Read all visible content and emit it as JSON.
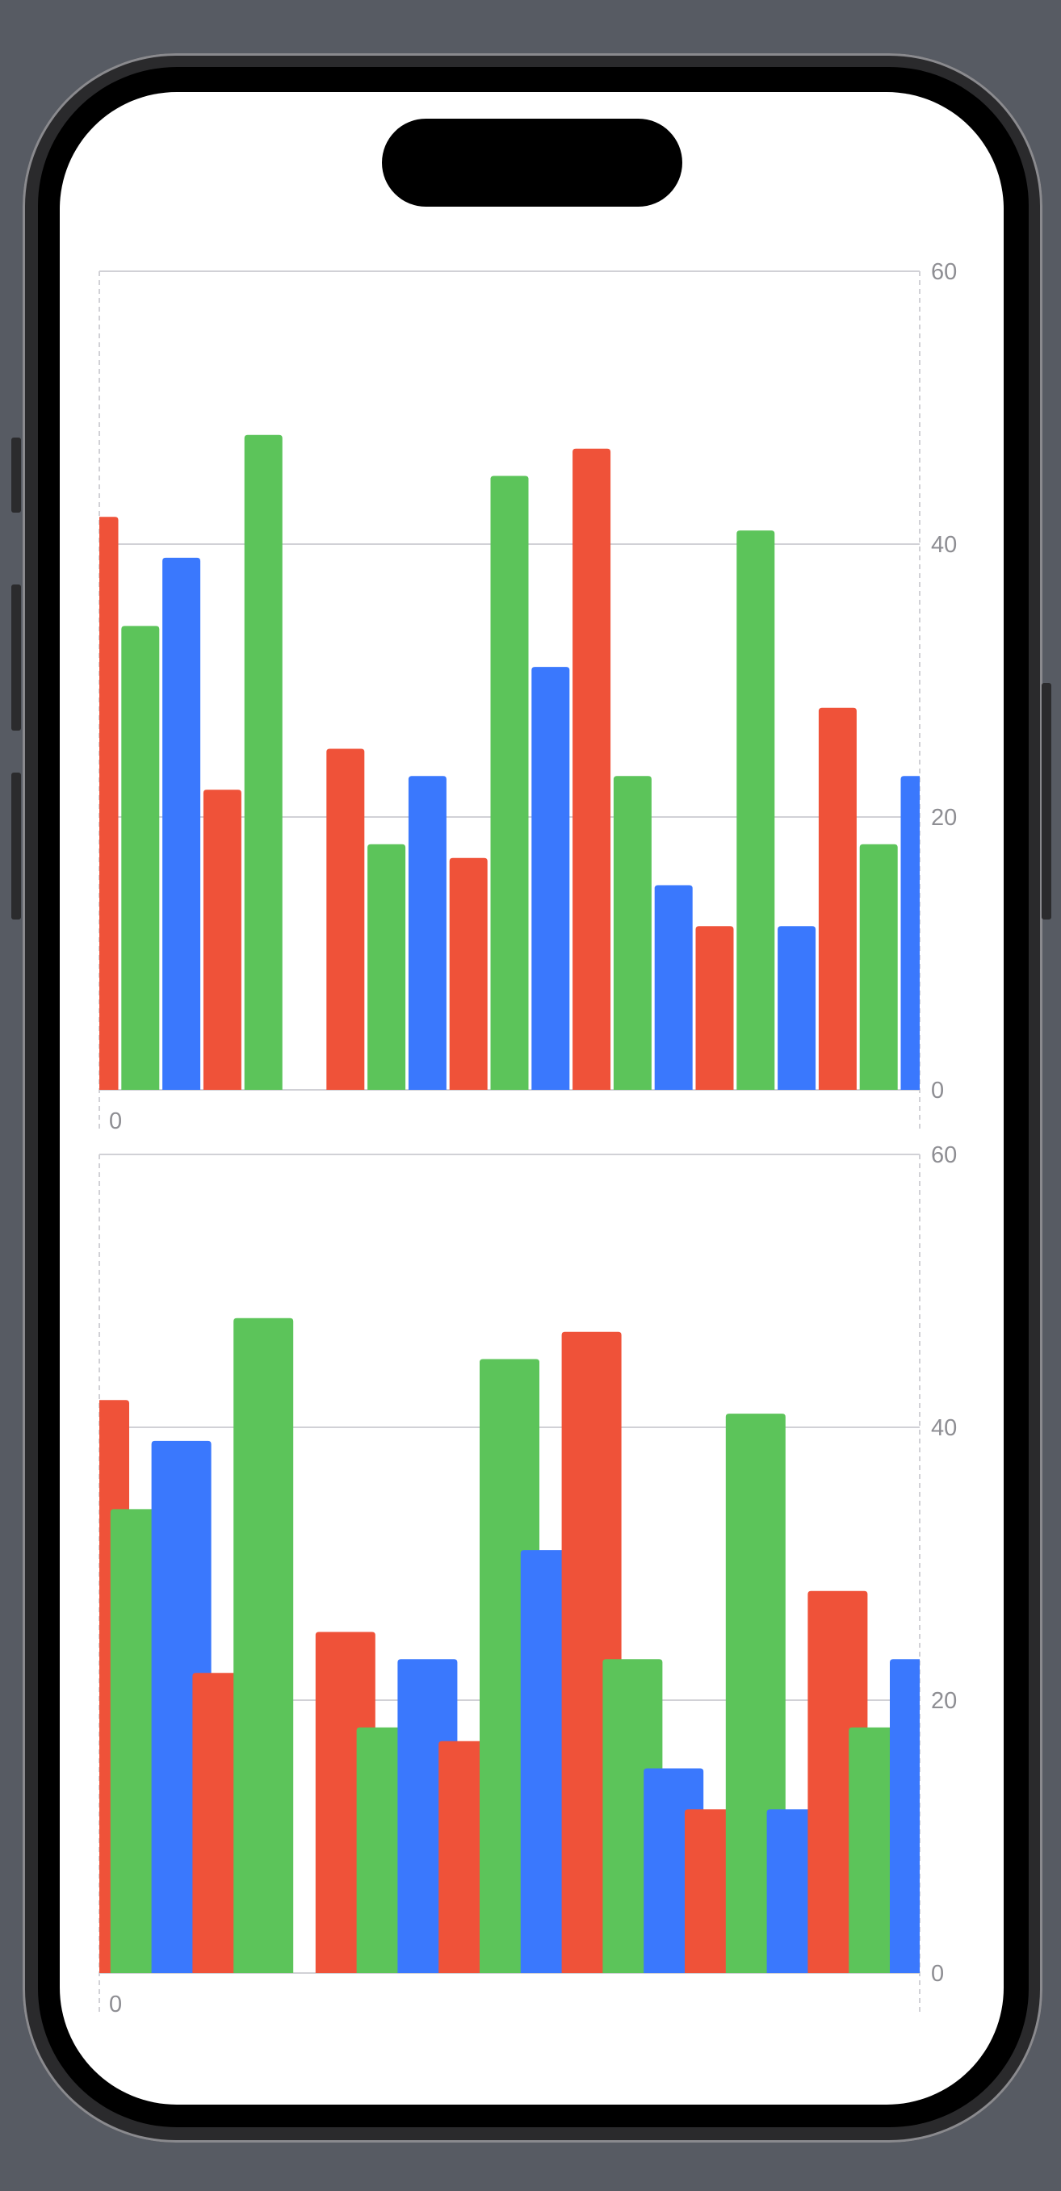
{
  "device": {
    "frame_color": "#575b63"
  },
  "chart_data": [
    {
      "type": "bar",
      "title": "",
      "xlabel": "",
      "ylabel": "",
      "ylim": [
        0,
        60
      ],
      "yticks": [
        "0",
        "20",
        "40",
        "60"
      ],
      "xticks": [
        "0"
      ],
      "y_axis_position": "right",
      "grid": true,
      "bar_style": "separated",
      "color_cycle": [
        "#ef5239",
        "#5cc45a",
        "#3a78fd"
      ],
      "values": [
        42,
        34,
        39,
        22,
        48,
        0,
        25,
        18,
        23,
        17,
        45,
        31,
        47,
        23,
        15,
        12,
        41,
        12,
        28,
        18,
        23
      ]
    },
    {
      "type": "bar",
      "title": "",
      "xlabel": "",
      "ylabel": "",
      "ylim": [
        0,
        60
      ],
      "yticks": [
        "0",
        "20",
        "40",
        "60"
      ],
      "xticks": [
        "0"
      ],
      "y_axis_position": "right",
      "grid": true,
      "bar_style": "overlapping",
      "color_cycle": [
        "#ef5239",
        "#5cc45a",
        "#3a78fd"
      ],
      "values": [
        42,
        34,
        39,
        22,
        48,
        0,
        25,
        18,
        23,
        17,
        45,
        31,
        47,
        23,
        15,
        12,
        41,
        12,
        28,
        18,
        23
      ]
    }
  ]
}
